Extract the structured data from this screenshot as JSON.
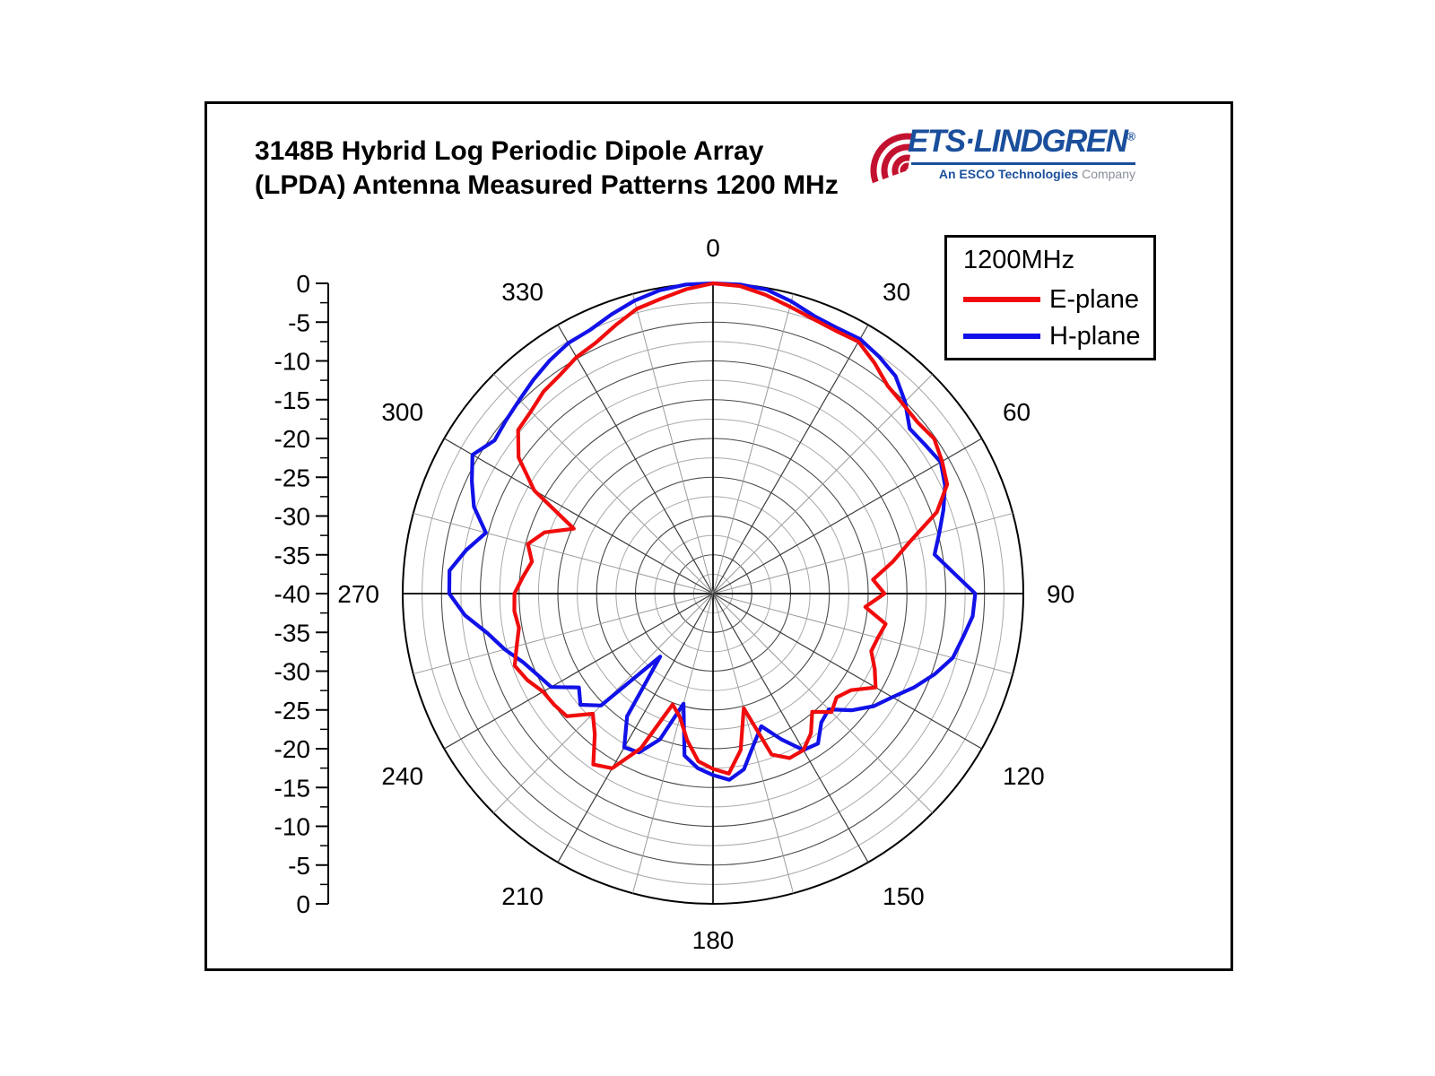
{
  "figure": {
    "title_line1": "3148B Hybrid Log Periodic Dipole Array",
    "title_line2": "(LPDA) Antenna Measured Patterns 1200 MHz"
  },
  "logo": {
    "brand": "ETS·LINDGREN",
    "registered": "®",
    "tagline_bold": "An ESCO Technologies",
    "tagline_light": " Company",
    "brand_color": "#1b4f9c",
    "tagline_light_color": "#8a8f98",
    "arc_color": "#c31230"
  },
  "legend": {
    "title": "1200MHz",
    "items": [
      {
        "label": "E-plane",
        "color": "#f00c0c"
      },
      {
        "label": "H-plane",
        "color": "#1111e8"
      }
    ]
  },
  "chart_data": {
    "type": "polar-line",
    "title": "3148B Hybrid Log Periodic Dipole Array (LPDA) Antenna Measured Patterns 1200 MHz",
    "units": "dB",
    "legend_position": "top-right",
    "radial_axis": {
      "min": -40,
      "max": 0,
      "ring_step_db": 2.5,
      "label_step_db": 5,
      "tick_labels": [
        "0",
        "-5",
        "-10",
        "-15",
        "-20",
        "-25",
        "-30",
        "-35",
        "-40",
        "-35",
        "-30",
        "-25",
        "-20",
        "-15",
        "-10",
        "-5",
        "0"
      ]
    },
    "angular_axis": {
      "spoke_step_deg": 15,
      "labels": [
        "0",
        "30",
        "60",
        "90",
        "120",
        "150",
        "180",
        "210",
        "240",
        "270",
        "300",
        "330"
      ]
    },
    "angles_deg": [
      0,
      5,
      10,
      15,
      20,
      25,
      30,
      35,
      40,
      45,
      50,
      55,
      60,
      65,
      70,
      75,
      80,
      85,
      90,
      95,
      100,
      105,
      110,
      115,
      120,
      125,
      130,
      135,
      140,
      145,
      150,
      155,
      160,
      165,
      170,
      175,
      180,
      185,
      190,
      195,
      200,
      205,
      210,
      215,
      220,
      225,
      230,
      235,
      240,
      245,
      250,
      255,
      260,
      265,
      270,
      275,
      280,
      285,
      290,
      295,
      300,
      305,
      310,
      315,
      320,
      325,
      330,
      335,
      340,
      345,
      350,
      355
    ],
    "series": [
      {
        "name": "E-plane",
        "color": "#f00c0c",
        "values": [
          0,
          -0.2,
          -0.9,
          -1.7,
          -2.3,
          -2.6,
          -2.5,
          -3.7,
          -5.0,
          -5.4,
          -5.6,
          -5.2,
          -5.9,
          -6.7,
          -9.3,
          -13.6,
          -16.5,
          -19.3,
          -17.9,
          -20.3,
          -17.4,
          -18.0,
          -18.3,
          -17.0,
          -15.8,
          -18.3,
          -19.2,
          -18.4,
          -20.1,
          -18.0,
          -16.7,
          -16.6,
          -17.9,
          -24.7,
          -19.5,
          -16.7,
          -17.4,
          -18.3,
          -20.8,
          -23.5,
          -24.8,
          -18.0,
          -14.0,
          -13.1,
          -16.3,
          -18.1,
          -15.4,
          -15.0,
          -14.7,
          -13.6,
          -12.8,
          -13.8,
          -14.6,
          -14.3,
          -14.4,
          -15.4,
          -16.3,
          -15.3,
          -16.9,
          -20.2,
          -13.4,
          -9.4,
          -7.2,
          -6.8,
          -6.0,
          -5.6,
          -4.8,
          -4.3,
          -3.2,
          -2.0,
          -1.4,
          -0.6
        ]
      },
      {
        "name": "H-plane",
        "color": "#1111e8",
        "values": [
          0,
          0,
          -0.2,
          -1.0,
          -1.9,
          -2.2,
          -2.1,
          -2.7,
          -3.4,
          -5.0,
          -6.9,
          -6.6,
          -6.1,
          -7.0,
          -8.4,
          -9.8,
          -11.0,
          -8.9,
          -6.2,
          -6.4,
          -7.3,
          -8.0,
          -9.6,
          -11.4,
          -13.3,
          -14.7,
          -16.6,
          -18.9,
          -18.3,
          -16.4,
          -16.7,
          -19.3,
          -21.8,
          -19.8,
          -17.0,
          -15.9,
          -16.6,
          -17.4,
          -18.8,
          -25.3,
          -20.0,
          -17.4,
          -17.1,
          -20.7,
          -29.4,
          -19.6,
          -17.7,
          -18.9,
          -15.9,
          -15.1,
          -14.0,
          -12.2,
          -10.5,
          -7.9,
          -6.0,
          -5.9,
          -7.7,
          -9.7,
          -7.2,
          -5.7,
          -4.2,
          -5.6,
          -5.2,
          -4.7,
          -4.0,
          -3.3,
          -2.7,
          -2.5,
          -1.7,
          -0.9,
          -0.3,
          0
        ]
      }
    ]
  }
}
